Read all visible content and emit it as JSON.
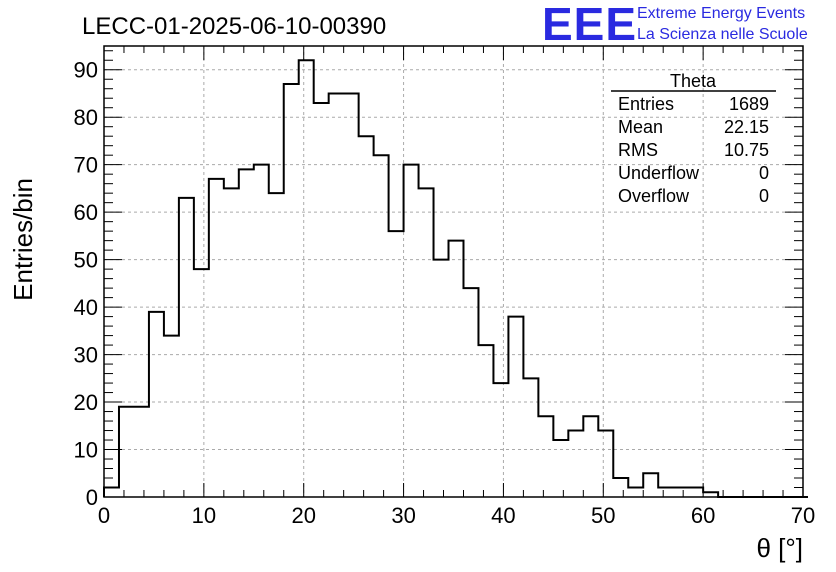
{
  "page": {
    "title": "LECC-01-2025-06-10-00390"
  },
  "logo": {
    "mark": "EEE",
    "line1": "Extreme Energy Events",
    "line2": "La Scienza nelle Scuole",
    "color": "#2a2ae0"
  },
  "stats": {
    "title": "Theta",
    "rows": [
      {
        "label": "Entries",
        "value": "1689"
      },
      {
        "label": "Mean",
        "value": "22.15"
      },
      {
        "label": "RMS",
        "value": "10.75"
      },
      {
        "label": "Underflow",
        "value": "0"
      },
      {
        "label": "Overflow",
        "value": "0"
      }
    ]
  },
  "chart_data": {
    "type": "bar",
    "title": "LECC-01-2025-06-10-00390",
    "xlabel": "θ [°]",
    "ylabel": "Entries/bin",
    "xlim": [
      0,
      70
    ],
    "ylim": [
      0,
      95
    ],
    "grid": true,
    "x_ticks": [
      0,
      10,
      20,
      30,
      40,
      50,
      60,
      70
    ],
    "y_ticks": [
      0,
      10,
      20,
      30,
      40,
      50,
      60,
      70,
      80,
      90
    ],
    "bin_width": 1.5,
    "bin_edges_start": 0,
    "values": [
      2,
      19,
      19,
      39,
      34,
      63,
      48,
      67,
      65,
      69,
      70,
      64,
      87,
      92,
      83,
      85,
      85,
      76,
      72,
      56,
      70,
      65,
      50,
      54,
      44,
      32,
      24,
      38,
      25,
      17,
      12,
      14,
      17,
      14,
      4,
      2,
      5,
      2,
      2,
      2,
      1,
      0,
      0,
      0,
      0,
      0,
      0
    ],
    "line_color": "#000000"
  }
}
